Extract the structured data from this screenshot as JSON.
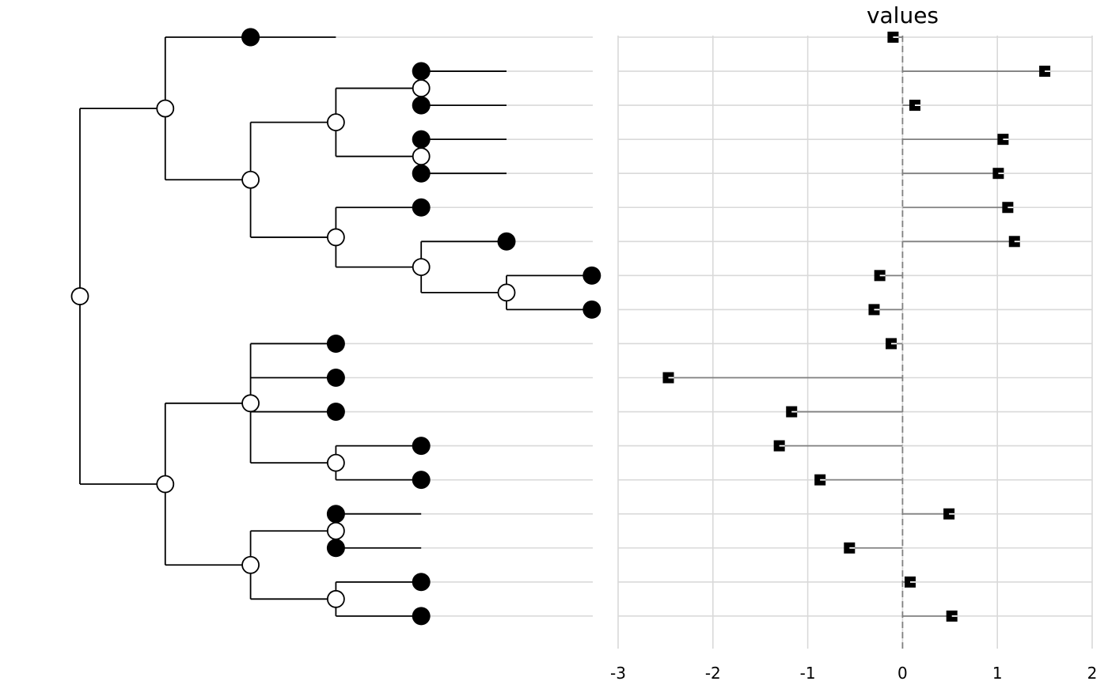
{
  "chart_data": {
    "type": "tree-dotplot",
    "title": "values",
    "xlabel": "",
    "ylabel": "",
    "xlim": [
      -3,
      2
    ],
    "xticks": [
      -3,
      -2,
      -1,
      0,
      1,
      2
    ],
    "reference_line": 0,
    "tips": [
      {
        "depth": 2,
        "value": -0.1
      },
      {
        "depth": 4,
        "value": 1.5
      },
      {
        "depth": 4,
        "value": 0.13
      },
      {
        "depth": 4,
        "value": 1.06
      },
      {
        "depth": 4,
        "value": 1.01
      },
      {
        "depth": 4,
        "value": 1.11
      },
      {
        "depth": 5,
        "value": 1.18
      },
      {
        "depth": 6,
        "value": -0.24
      },
      {
        "depth": 6,
        "value": -0.3
      },
      {
        "depth": 3,
        "value": -0.12
      },
      {
        "depth": 3,
        "value": -2.47
      },
      {
        "depth": 3,
        "value": -1.17
      },
      {
        "depth": 4,
        "value": -1.3
      },
      {
        "depth": 4,
        "value": -0.87
      },
      {
        "depth": 3,
        "value": 0.49
      },
      {
        "depth": 3,
        "value": -0.56
      },
      {
        "depth": 4,
        "value": 0.08
      },
      {
        "depth": 4,
        "value": 0.52
      }
    ],
    "tree": [
      [
        [
          0
        ],
        [
          [
            [
              1,
              2
            ],
            [
              3,
              4
            ]
          ],
          [
            5,
            [
              6,
              [
                7,
                8
              ]
            ]
          ]
        ]
      ],
      [
        [
          9,
          10,
          11,
          [
            12,
            13
          ]
        ],
        [
          [
            14,
            15
          ],
          [
            16,
            17
          ]
        ]
      ]
    ]
  },
  "colors": {
    "tip": "#000000",
    "node_fill": "#ffffff",
    "grid": "#d9d9d9",
    "stem": "#808080"
  }
}
